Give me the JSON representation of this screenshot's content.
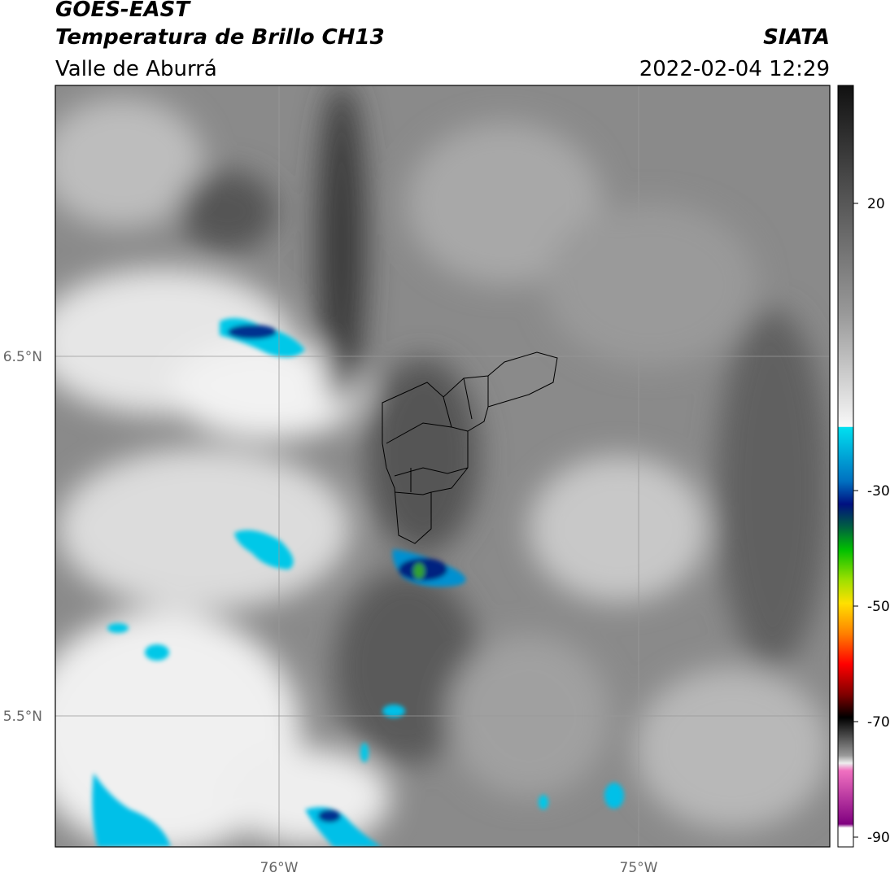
{
  "header": {
    "title": "GOES-EAST",
    "subtitle": "Temperatura de Brillo CH13",
    "region": "Valle de Aburrá",
    "source": "SIATA",
    "datetime": "2022-02-04 12:29"
  },
  "map": {
    "lat_labels": [
      "6.5°N",
      "5.5°N"
    ],
    "lon_labels": [
      "76°W",
      "75°W"
    ]
  },
  "colorbar": {
    "ticks": [
      "20",
      "-30",
      "-50",
      "-70",
      "-90"
    ]
  }
}
